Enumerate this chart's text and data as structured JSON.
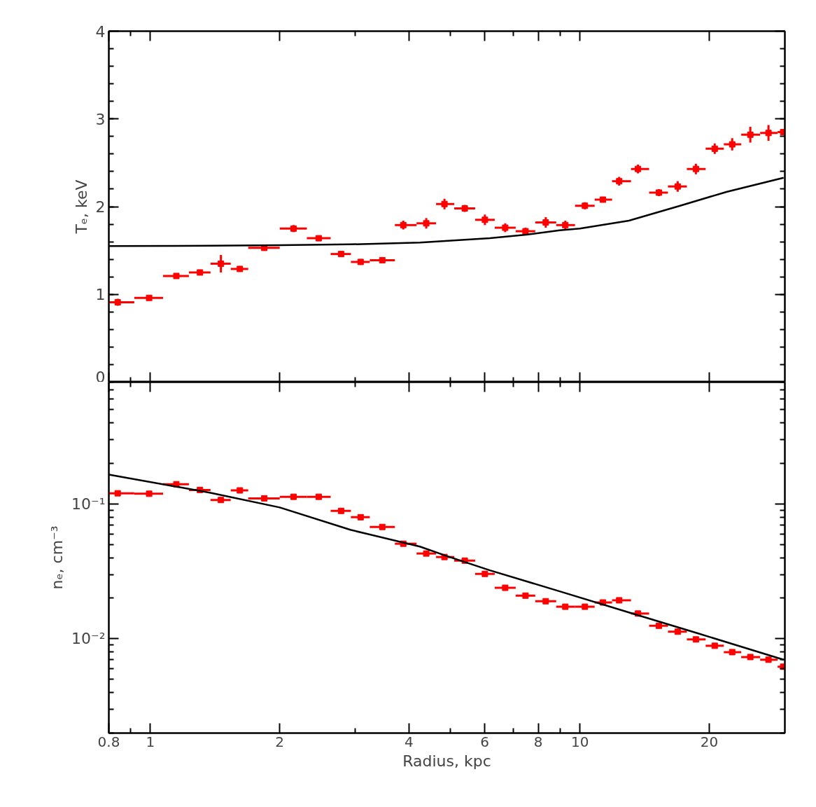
{
  "chart_data": [
    {
      "type": "scatter",
      "ylabel": "Tₑ, keV",
      "log": "x",
      "xlim": [
        0.8,
        30
      ],
      "ylim": [
        0,
        4
      ],
      "tick_labels": "y",
      "xticks": [
        0.8,
        {
          "value": 0.9,
          "label": null
        },
        1,
        2,
        {
          "value": 3,
          "label": null
        },
        4,
        {
          "value": 5,
          "label": null
        },
        6,
        {
          "value": 7,
          "label": null
        },
        8,
        {
          "value": 9,
          "label": null
        },
        10,
        20
      ],
      "yticks": [
        0,
        1,
        2,
        3,
        4
      ],
      "series": [
        {
          "marker": "square",
          "color": "#ff0000",
          "x": [
            0.839,
            0.993,
            1.149,
            1.304,
            1.459,
            1.615,
            1.841,
            2.154,
            2.465,
            2.779,
            3.086,
            3.466,
            3.879,
            4.387,
            4.837,
            5.393,
            6.008,
            6.699,
            7.469,
            8.325,
            9.245,
            10.27,
            11.31,
            12.34,
            13.65,
            15.27,
            16.89,
            18.62,
            20.6,
            22.62,
            24.93,
            27.48,
            29.73
          ],
          "values": [
            0.91,
            0.96,
            1.21,
            1.25,
            1.35,
            1.29,
            1.53,
            1.75,
            1.64,
            1.46,
            1.37,
            1.39,
            1.79,
            1.81,
            2.03,
            1.98,
            1.85,
            1.76,
            1.72,
            1.82,
            1.79,
            2.01,
            2.08,
            2.29,
            2.43,
            2.16,
            2.23,
            2.43,
            2.66,
            2.71,
            2.82,
            2.84,
            2.85
          ],
          "errors": [
            0.04,
            0.02,
            0.03,
            0.03,
            0.1,
            0.02,
            0.03,
            0.04,
            0.02,
            0.02,
            0.03,
            0.02,
            0.05,
            0.06,
            0.06,
            0.04,
            0.06,
            0.05,
            0.04,
            0.06,
            0.05,
            0.04,
            0.03,
            0.05,
            0.05,
            0.04,
            0.06,
            0.06,
            0.06,
            0.07,
            0.09,
            0.09,
            null
          ],
          "xerrors": [
            [
              0.8,
              0.917
            ],
            [
              0.917,
              1.07
            ],
            [
              1.07,
              1.229
            ],
            [
              1.229,
              1.38
            ],
            [
              1.38,
              1.538
            ],
            [
              1.538,
              1.689
            ],
            [
              1.689,
              2.0
            ],
            [
              2.0,
              2.313
            ],
            [
              2.313,
              2.628
            ],
            [
              2.628,
              2.929
            ],
            [
              2.929,
              3.241
            ],
            [
              3.241,
              3.708
            ],
            [
              3.708,
              4.165
            ],
            [
              4.165,
              4.624
            ],
            [
              4.624,
              5.097
            ],
            [
              5.097,
              5.702
            ],
            [
              5.702,
              6.333
            ],
            [
              6.333,
              7.086
            ],
            [
              7.086,
              7.87
            ],
            [
              7.87,
              8.805
            ],
            [
              8.805,
              9.741
            ],
            [
              9.741,
              10.82
            ],
            [
              10.82,
              11.88
            ],
            [
              11.88,
              13.15
            ],
            [
              13.15,
              14.49
            ],
            [
              14.49,
              16.03
            ],
            [
              16.03,
              17.74
            ],
            [
              17.74,
              19.62
            ],
            [
              19.62,
              21.63
            ],
            [
              21.63,
              23.74
            ],
            [
              23.74,
              26.28
            ],
            [
              26.28,
              28.86
            ],
            [
              28.86,
              30
            ]
          ]
        },
        {
          "type": "line",
          "color": "#000000",
          "x": [
            0.8,
            1.38,
            2.0,
            2.92,
            4.24,
            4.93,
            6.17,
            7.5,
            8.97,
            10,
            13.0,
            17.1,
            22.0,
            29.8
          ],
          "values": [
            1.55,
            1.555,
            1.56,
            1.57,
            1.59,
            1.61,
            1.64,
            1.68,
            1.73,
            1.75,
            1.84,
            2.01,
            2.17,
            2.33
          ]
        }
      ]
    },
    {
      "type": "scatter",
      "xlabel": "Radius, kpc",
      "ylabel": "nₑ, cm⁻³",
      "log": "xy",
      "xlim": [
        0.8,
        30
      ],
      "ylim": [
        0.002,
        0.8
      ],
      "xticks": [
        0.8,
        {
          "value": 0.9,
          "label": null
        },
        1,
        2,
        {
          "value": 3,
          "label": null
        },
        4,
        {
          "value": 5,
          "label": null
        },
        6,
        {
          "value": 7,
          "label": null
        },
        8,
        {
          "value": 9,
          "label": null
        },
        10,
        20
      ],
      "yticks": [
        {
          "value": 0.1,
          "label": "10⁻¹"
        },
        {
          "value": 0.01,
          "label": "10⁻²"
        }
      ],
      "series": [
        {
          "marker": "square",
          "color": "#ff0000",
          "x": [
            0.839,
            0.993,
            1.149,
            1.304,
            1.459,
            1.615,
            1.841,
            2.154,
            2.465,
            2.779,
            3.086,
            3.466,
            3.879,
            4.387,
            4.837,
            5.393,
            6.008,
            6.699,
            7.469,
            8.325,
            9.245,
            10.27,
            11.31,
            12.34,
            13.65,
            15.27,
            16.89,
            18.62,
            20.6,
            22.62,
            24.93,
            27.48,
            29.73
          ],
          "values": [
            0.12,
            0.119,
            0.14,
            0.127,
            0.107,
            0.126,
            0.11,
            0.113,
            0.113,
            0.0888,
            0.0797,
            0.0675,
            0.0507,
            0.0429,
            0.0404,
            0.038,
            0.0303,
            0.0239,
            0.0209,
            0.019,
            0.0173,
            0.0173,
            0.0186,
            0.0193,
            0.0154,
            0.0125,
            0.0113,
            0.0099,
            0.00888,
            0.00797,
            0.00733,
            0.007,
            0.00621
          ],
          "xerrors": [
            [
              0.8,
              0.917
            ],
            [
              0.917,
              1.07
            ],
            [
              1.07,
              1.229
            ],
            [
              1.229,
              1.38
            ],
            [
              1.38,
              1.538
            ],
            [
              1.538,
              1.689
            ],
            [
              1.689,
              2.0
            ],
            [
              2.0,
              2.313
            ],
            [
              2.313,
              2.628
            ],
            [
              2.628,
              2.929
            ],
            [
              2.929,
              3.241
            ],
            [
              3.241,
              3.708
            ],
            [
              3.708,
              4.165
            ],
            [
              4.165,
              4.624
            ],
            [
              4.624,
              5.097
            ],
            [
              5.097,
              5.702
            ],
            [
              5.702,
              6.333
            ],
            [
              6.333,
              7.086
            ],
            [
              7.086,
              7.87
            ],
            [
              7.87,
              8.805
            ],
            [
              8.805,
              9.741
            ],
            [
              9.741,
              10.82
            ],
            [
              10.82,
              11.88
            ],
            [
              11.88,
              13.15
            ],
            [
              13.15,
              14.49
            ],
            [
              14.49,
              16.03
            ],
            [
              16.03,
              17.74
            ],
            [
              17.74,
              19.62
            ],
            [
              19.62,
              21.63
            ],
            [
              21.63,
              23.74
            ],
            [
              23.74,
              26.28
            ],
            [
              26.28,
              28.86
            ],
            [
              28.86,
              30
            ]
          ]
        },
        {
          "type": "line",
          "color": "#000000",
          "x": [
            0.8,
            1.38,
            2.0,
            2.92,
            4.24,
            4.93,
            6.17,
            8.97,
            13.0,
            18.8,
            29.8
          ],
          "values": [
            0.165,
            0.121,
            0.0942,
            0.0643,
            0.0483,
            0.0408,
            0.0322,
            0.0225,
            0.0157,
            0.011,
            0.007
          ]
        }
      ]
    }
  ]
}
